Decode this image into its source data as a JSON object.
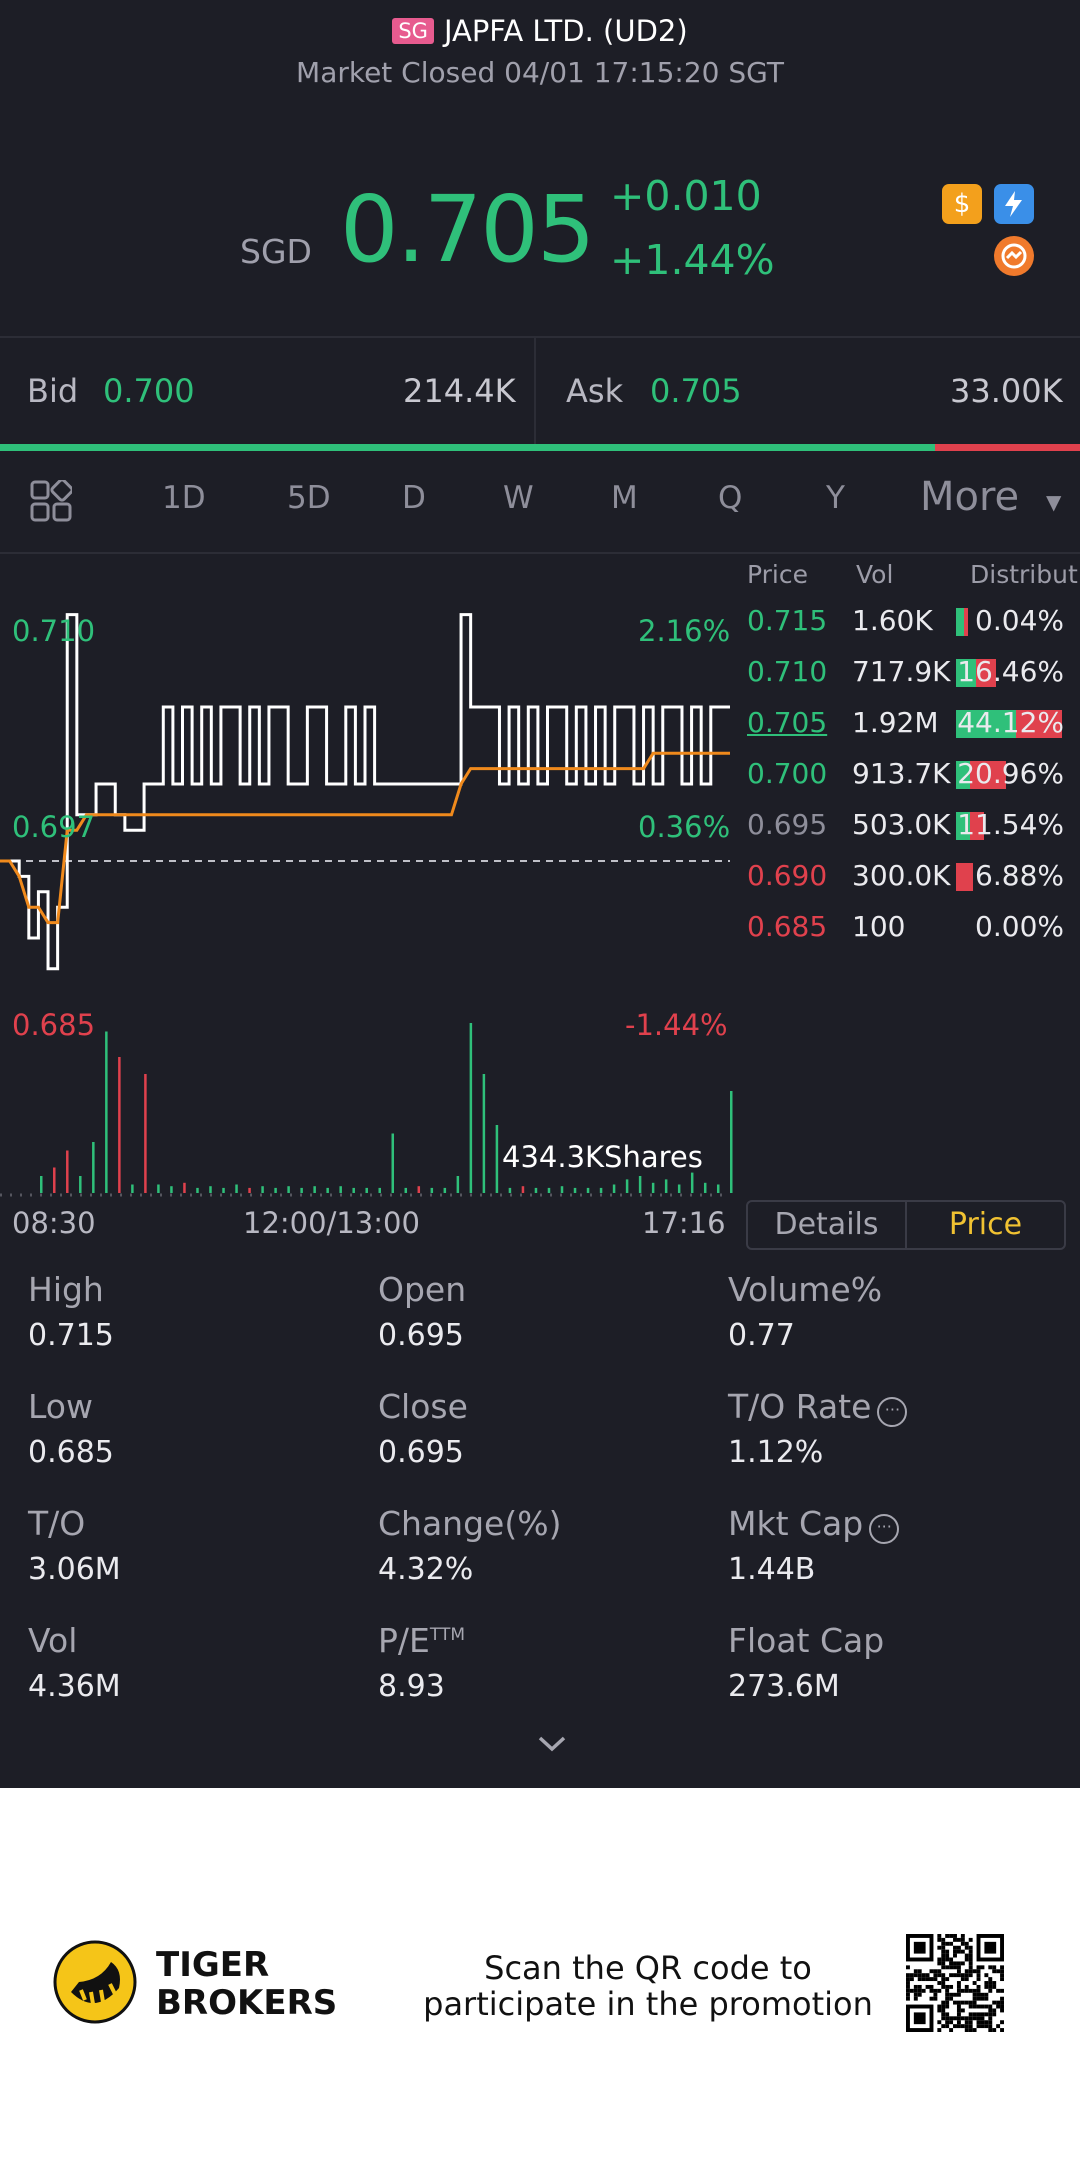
{
  "header": {
    "market_badge": "SG",
    "title": "JAPFA LTD. (UD2)",
    "status": "Market Closed 04/01 17:15:20 SGT"
  },
  "quote": {
    "currency": "SGD",
    "price": "0.705",
    "change": "+0.010",
    "change_pct": "+1.44%",
    "icons": [
      "dollar-icon",
      "flash-icon",
      "swap-icon"
    ]
  },
  "bid_ask": {
    "bid_label": "Bid",
    "bid_price": "0.700",
    "bid_size": "214.4K",
    "ask_label": "Ask",
    "ask_price": "0.705",
    "ask_size": "33.00K",
    "bid_ratio": 0.866
  },
  "tabs": {
    "items": [
      "1D",
      "5D",
      "D",
      "W",
      "M",
      "Q",
      "Y"
    ],
    "active": "1D",
    "more_label": "More"
  },
  "intraday": {
    "price_high_label": "0.710",
    "price_mid_label": "0.697",
    "price_low_label": "0.685",
    "pct_high_label": "2.16%",
    "pct_mid_label": "0.36%",
    "pct_low_label": "-1.44%",
    "volume_label": "434.3KShares",
    "time_start": "08:30",
    "time_mid": "12:00/13:00",
    "time_end": "17:16",
    "prev_close": 0.695,
    "y_range": [
      0.685,
      0.71
    ],
    "price_series": [
      0.695,
      0.695,
      0.694,
      0.69,
      0.693,
      0.688,
      0.692,
      0.711,
      0.698,
      0.698,
      0.7,
      0.7,
      0.698,
      0.697,
      0.697,
      0.7,
      0.7,
      0.705,
      0.7,
      0.705,
      0.7,
      0.705,
      0.7,
      0.705,
      0.705,
      0.7,
      0.705,
      0.7,
      0.705,
      0.705,
      0.7,
      0.7,
      0.705,
      0.705,
      0.7,
      0.7,
      0.705,
      0.7,
      0.705,
      0.7,
      0.7,
      0.7,
      0.7,
      0.7,
      0.7,
      0.7,
      0.7,
      0.7,
      0.711,
      0.705,
      0.705,
      0.705,
      0.7,
      0.705,
      0.7,
      0.705,
      0.7,
      0.705,
      0.705,
      0.7,
      0.705,
      0.7,
      0.705,
      0.7,
      0.705,
      0.705,
      0.7,
      0.705,
      0.7,
      0.705,
      0.705,
      0.7,
      0.705,
      0.7,
      0.705,
      0.705,
      0.705
    ],
    "avg_series": [
      0.695,
      0.695,
      0.694,
      0.692,
      0.692,
      0.691,
      0.691,
      0.697,
      0.697,
      0.698,
      0.698,
      0.698,
      0.698,
      0.698,
      0.698,
      0.698,
      0.698,
      0.698,
      0.698,
      0.698,
      0.698,
      0.698,
      0.698,
      0.698,
      0.698,
      0.698,
      0.698,
      0.698,
      0.698,
      0.698,
      0.698,
      0.698,
      0.698,
      0.698,
      0.698,
      0.698,
      0.698,
      0.698,
      0.698,
      0.698,
      0.698,
      0.698,
      0.698,
      0.698,
      0.698,
      0.698,
      0.698,
      0.698,
      0.7,
      0.701,
      0.701,
      0.701,
      0.701,
      0.701,
      0.701,
      0.701,
      0.701,
      0.701,
      0.701,
      0.701,
      0.701,
      0.701,
      0.701,
      0.701,
      0.701,
      0.701,
      0.701,
      0.701,
      0.702,
      0.702,
      0.702,
      0.702,
      0.702,
      0.702,
      0.702,
      0.702,
      0.702
    ],
    "volume_series": [
      {
        "v": 0.1,
        "c": "g"
      },
      {
        "v": 0.15,
        "c": "r"
      },
      {
        "v": 0.25,
        "c": "r"
      },
      {
        "v": 0.1,
        "c": "g"
      },
      {
        "v": 0.3,
        "c": "g"
      },
      {
        "v": 0.95,
        "c": "g"
      },
      {
        "v": 0.8,
        "c": "r"
      },
      {
        "v": 0.05,
        "c": "g"
      },
      {
        "v": 0.7,
        "c": "r"
      },
      {
        "v": 0.05,
        "c": "g"
      },
      {
        "v": 0.04,
        "c": "g"
      },
      {
        "v": 0.06,
        "c": "r"
      },
      {
        "v": 0.03,
        "c": "g"
      },
      {
        "v": 0.04,
        "c": "g"
      },
      {
        "v": 0.03,
        "c": "g"
      },
      {
        "v": 0.05,
        "c": "g"
      },
      {
        "v": 0.03,
        "c": "r"
      },
      {
        "v": 0.04,
        "c": "g"
      },
      {
        "v": 0.03,
        "c": "g"
      },
      {
        "v": 0.04,
        "c": "g"
      },
      {
        "v": 0.03,
        "c": "g"
      },
      {
        "v": 0.04,
        "c": "g"
      },
      {
        "v": 0.03,
        "c": "g"
      },
      {
        "v": 0.04,
        "c": "g"
      },
      {
        "v": 0.03,
        "c": "g"
      },
      {
        "v": 0.03,
        "c": "g"
      },
      {
        "v": 0.03,
        "c": "g"
      },
      {
        "v": 0.35,
        "c": "g"
      },
      {
        "v": 0.03,
        "c": "g"
      },
      {
        "v": 0.04,
        "c": "r"
      },
      {
        "v": 0.03,
        "c": "g"
      },
      {
        "v": 0.03,
        "c": "g"
      },
      {
        "v": 0.1,
        "c": "g"
      },
      {
        "v": 1.0,
        "c": "g"
      },
      {
        "v": 0.7,
        "c": "g"
      },
      {
        "v": 0.4,
        "c": "g"
      },
      {
        "v": 0.03,
        "c": "g"
      },
      {
        "v": 0.04,
        "c": "r"
      },
      {
        "v": 0.03,
        "c": "g"
      },
      {
        "v": 0.03,
        "c": "g"
      },
      {
        "v": 0.04,
        "c": "g"
      },
      {
        "v": 0.03,
        "c": "g"
      },
      {
        "v": 0.03,
        "c": "g"
      },
      {
        "v": 0.03,
        "c": "g"
      },
      {
        "v": 0.05,
        "c": "g"
      },
      {
        "v": 0.08,
        "c": "g"
      },
      {
        "v": 0.1,
        "c": "g"
      },
      {
        "v": 0.06,
        "c": "g"
      },
      {
        "v": 0.08,
        "c": "g"
      },
      {
        "v": 0.05,
        "c": "g"
      },
      {
        "v": 0.12,
        "c": "g"
      },
      {
        "v": 0.06,
        "c": "g"
      },
      {
        "v": 0.05,
        "c": "g"
      },
      {
        "v": 0.6,
        "c": "g"
      }
    ]
  },
  "order_book": {
    "headers": [
      "Price",
      "Vol",
      "Distribut"
    ],
    "rows": [
      {
        "price": "0.715",
        "vol": "1.60K",
        "dist": "0.04%",
        "pct": 0.0004,
        "color": "green"
      },
      {
        "price": "0.710",
        "vol": "717.9K",
        "dist": "16.46%",
        "pct": 0.1646,
        "color": "green"
      },
      {
        "price": "0.705",
        "vol": "1.92M",
        "dist": "44.12%",
        "pct": 0.4412,
        "color": "green"
      },
      {
        "price": "0.700",
        "vol": "913.7K",
        "dist": "20.96%",
        "pct": 0.2096,
        "color": "green"
      },
      {
        "price": "0.695",
        "vol": "503.0K",
        "dist": "11.54%",
        "pct": 0.1154,
        "color": "gray"
      },
      {
        "price": "0.690",
        "vol": "300.0K",
        "dist": "6.88%",
        "pct": 0.0688,
        "color": "red"
      },
      {
        "price": "0.685",
        "vol": "100",
        "dist": "0.00%",
        "pct": 0.0,
        "color": "red"
      }
    ]
  },
  "panel_tabs": {
    "details": "Details",
    "price": "Price"
  },
  "stats": [
    {
      "label": "High",
      "value": "0.715"
    },
    {
      "label": "Open",
      "value": "0.695"
    },
    {
      "label": "Volume%",
      "value": "0.77"
    },
    {
      "label": "Low",
      "value": "0.685"
    },
    {
      "label": "Close",
      "value": "0.695"
    },
    {
      "label": "T/O Rate",
      "value": "1.12%"
    },
    {
      "label": "T/O",
      "value": "3.06M"
    },
    {
      "label": "Change(%)",
      "value": "4.32%"
    },
    {
      "label": "Mkt Cap",
      "value": "1.44B"
    },
    {
      "label": "Vol",
      "value": "4.36M"
    },
    {
      "label": "P/E",
      "value": "8.93"
    },
    {
      "label": "Float Cap",
      "value": "273.6M"
    }
  ],
  "pe_superscript": "TTM",
  "info_glyph": "···",
  "footer": {
    "brand_line1": "TIGER",
    "brand_line2": "BROKERS",
    "promo_line1": "Scan the QR code to",
    "promo_line2": "participate in the promotion"
  }
}
